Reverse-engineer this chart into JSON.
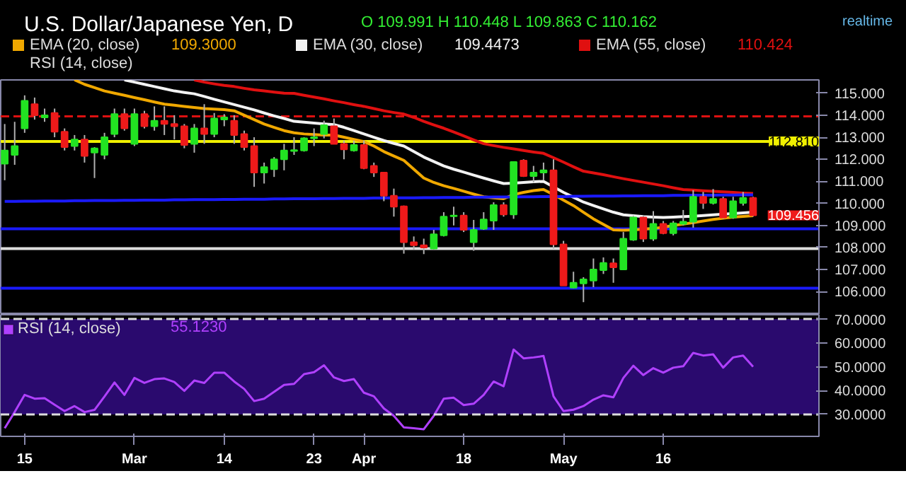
{
  "chart_data": [
    {
      "type": "candlestick",
      "title": "U.S. Dollar/Japanese Yen, D",
      "categories": [
        null,
        null,
        null,
        null,
        null,
        null,
        null,
        null,
        null,
        null,
        null,
        null,
        null,
        null,
        null,
        null,
        null,
        null,
        null,
        null,
        null,
        null,
        null,
        null,
        null,
        null,
        null,
        null,
        null,
        null,
        null,
        null,
        null,
        null,
        null,
        null,
        null,
        null,
        null,
        null,
        null,
        null,
        null,
        null,
        null,
        null,
        null,
        null,
        null,
        null,
        null,
        null,
        null,
        null,
        null,
        null,
        null,
        null,
        null,
        null,
        null,
        null,
        null,
        null,
        null,
        null,
        null,
        null,
        null,
        null,
        null,
        null,
        null,
        null,
        null,
        null
      ],
      "ohlc": [
        [
          111.8,
          113.6,
          111.05,
          112.4
        ],
        [
          112.2,
          113.7,
          111.75,
          112.6
        ],
        [
          113.4,
          114.9,
          113.2,
          114.65
        ],
        [
          114.5,
          114.8,
          113.8,
          114.0
        ],
        [
          113.9,
          114.3,
          113.7,
          114.0
        ],
        [
          114.1,
          114.3,
          113.0,
          113.25
        ],
        [
          113.25,
          113.4,
          112.4,
          112.55
        ],
        [
          112.6,
          113.1,
          112.4,
          112.9
        ],
        [
          112.9,
          113.1,
          111.85,
          112.15
        ],
        [
          112.3,
          112.55,
          111.15,
          112.5
        ],
        [
          112.2,
          113.2,
          112.0,
          113.0
        ],
        [
          113.15,
          114.3,
          113.0,
          114.05
        ],
        [
          114.05,
          114.3,
          113.3,
          113.4
        ],
        [
          112.7,
          114.3,
          112.6,
          114.05
        ],
        [
          114.05,
          114.2,
          113.4,
          113.5
        ],
        [
          113.5,
          114.4,
          113.3,
          113.75
        ],
        [
          113.75,
          114.4,
          113.1,
          113.6
        ],
        [
          113.6,
          114.0,
          112.9,
          113.5
        ],
        [
          113.5,
          113.6,
          112.5,
          112.65
        ],
        [
          112.7,
          113.6,
          112.3,
          113.4
        ],
        [
          113.4,
          114.5,
          112.7,
          113.15
        ],
        [
          113.15,
          114.1,
          113.0,
          113.85
        ],
        [
          113.8,
          114.05,
          113.5,
          113.9
        ],
        [
          113.75,
          114.0,
          112.7,
          113.1
        ],
        [
          113.15,
          113.3,
          112.4,
          112.55
        ],
        [
          112.6,
          113.0,
          110.75,
          111.4
        ],
        [
          111.4,
          111.85,
          110.9,
          111.65
        ],
        [
          111.55,
          112.1,
          111.2,
          112.0
        ],
        [
          112.0,
          112.7,
          111.5,
          112.4
        ],
        [
          112.38,
          113.0,
          112.2,
          112.42
        ],
        [
          112.4,
          113.0,
          112.35,
          112.95
        ],
        [
          112.95,
          113.4,
          112.6,
          113.0
        ],
        [
          113.15,
          113.75,
          112.95,
          113.55
        ],
        [
          113.5,
          113.85,
          112.7,
          112.7
        ],
        [
          112.7,
          112.85,
          112.0,
          112.45
        ],
        [
          112.4,
          112.85,
          112.35,
          112.65
        ],
        [
          112.65,
          112.85,
          111.55,
          111.6
        ],
        [
          111.7,
          111.85,
          111.2,
          111.4
        ],
        [
          111.4,
          111.4,
          110.1,
          110.35
        ],
        [
          110.35,
          110.67,
          109.4,
          109.85
        ],
        [
          109.87,
          109.9,
          107.72,
          108.24
        ],
        [
          108.24,
          108.5,
          107.9,
          108.1
        ],
        [
          108.1,
          108.4,
          107.7,
          108.0
        ],
        [
          107.95,
          108.8,
          107.9,
          108.6
        ],
        [
          108.55,
          109.6,
          108.5,
          109.4
        ],
        [
          109.42,
          109.85,
          109.0,
          109.45
        ],
        [
          109.45,
          109.6,
          108.7,
          108.8
        ],
        [
          108.24,
          109.25,
          107.85,
          108.8
        ],
        [
          108.85,
          109.6,
          108.8,
          109.27
        ],
        [
          109.22,
          110.05,
          108.8,
          109.92
        ],
        [
          109.92,
          110.05,
          109.4,
          109.5
        ],
        [
          109.5,
          111.9,
          109.3,
          111.88
        ],
        [
          111.94,
          112.0,
          111.2,
          111.24
        ],
        [
          111.24,
          111.7,
          110.95,
          111.4
        ],
        [
          111.4,
          111.85,
          111.05,
          111.5
        ],
        [
          111.5,
          112.0,
          107.95,
          108.14
        ],
        [
          108.14,
          108.3,
          106.27,
          106.27
        ],
        [
          106.18,
          106.9,
          106.15,
          106.4
        ],
        [
          106.37,
          106.65,
          105.52,
          106.55
        ],
        [
          106.5,
          107.5,
          106.2,
          107.0
        ],
        [
          106.97,
          107.55,
          106.8,
          107.3
        ],
        [
          107.28,
          107.5,
          106.4,
          107.1
        ],
        [
          107.0,
          108.7,
          107.0,
          108.4
        ],
        [
          108.35,
          109.45,
          108.3,
          109.36
        ],
        [
          109.36,
          109.45,
          108.25,
          108.4
        ],
        [
          108.4,
          109.65,
          108.3,
          109.07
        ],
        [
          109.07,
          109.2,
          108.6,
          108.65
        ],
        [
          108.65,
          109.2,
          108.55,
          109.1
        ],
        [
          109.07,
          109.7,
          109.0,
          109.17
        ],
        [
          109.17,
          110.6,
          108.9,
          110.3
        ],
        [
          110.3,
          110.52,
          109.75,
          110.02
        ],
        [
          110.02,
          110.65,
          109.95,
          110.2
        ],
        [
          110.2,
          110.3,
          109.3,
          109.36
        ],
        [
          109.36,
          110.3,
          109.3,
          110.1
        ],
        [
          110.02,
          110.52,
          109.9,
          110.25
        ],
        [
          110.25,
          110.3,
          109.4,
          109.46
        ]
      ],
      "colors": [
        "#22e322",
        "#22e322",
        "#22e322",
        "#ee1a1a",
        "#22e322",
        "#ee1a1a",
        "#ee1a1a",
        "#22e322",
        "#ee1a1a",
        "#22e322",
        "#22e322",
        "#22e322",
        "#ee1a1a",
        "#22e322",
        "#ee1a1a",
        "#22e322",
        "#ee1a1a",
        "#ee1a1a",
        "#ee1a1a",
        "#22e322",
        "#ee1a1a",
        "#22e322",
        "#22e322",
        "#ee1a1a",
        "#ee1a1a",
        "#ee1a1a",
        "#22e322",
        "#22e322",
        "#22e322",
        "#22e322",
        "#22e322",
        "#22e322",
        "#22e322",
        "#ee1a1a",
        "#ee1a1a",
        "#22e322",
        "#ee1a1a",
        "#ee1a1a",
        "#ee1a1a",
        "#ee1a1a",
        "#ee1a1a",
        "#ee1a1a",
        "#ee1a1a",
        "#22e322",
        "#22e322",
        "#22e322",
        "#ee1a1a",
        "#22e322",
        "#22e322",
        "#22e322",
        "#ee1a1a",
        "#22e322",
        "#ee1a1a",
        "#22e322",
        "#22e322",
        "#ee1a1a",
        "#ee1a1a",
        "#22e322",
        "#22e322",
        "#22e322",
        "#22e322",
        "#ee1a1a",
        "#22e322",
        "#22e322",
        "#ee1a1a",
        "#22e322",
        "#ee1a1a",
        "#22e322",
        "#22e322",
        "#22e322",
        "#ee1a1a",
        "#22e322",
        "#ee1a1a",
        "#22e322",
        "#22e322",
        "#ee1a1a"
      ],
      "series": [
        {
          "type": "line",
          "name": "EMA (20, close)",
          "color": "#f0a800",
          "values": [
            null,
            null,
            null,
            null,
            null,
            null,
            null,
            115.6,
            115.4,
            115.25,
            115.1,
            115.0,
            114.9,
            114.8,
            114.7,
            114.6,
            114.5,
            114.45,
            114.4,
            114.35,
            114.3,
            114.28,
            114.25,
            114.2,
            114.0,
            113.8,
            113.6,
            113.45,
            113.3,
            113.2,
            113.15,
            113.12,
            113.1,
            113.1,
            113.0,
            112.9,
            112.8,
            112.6,
            112.35,
            112.15,
            111.95,
            111.55,
            111.15,
            110.95,
            110.8,
            110.68,
            110.55,
            110.42,
            110.3,
            110.25,
            110.21,
            110.4,
            110.5,
            110.58,
            110.63,
            110.4,
            110.15,
            109.9,
            109.6,
            109.3,
            109.05,
            108.8,
            108.78,
            108.8,
            108.83,
            108.86,
            108.92,
            109.0,
            109.06,
            109.13,
            109.2,
            109.27,
            109.33,
            109.38,
            109.41,
            109.44
          ]
        },
        {
          "type": "line",
          "name": "EMA (30, close)",
          "color": "#f2f2f2",
          "values": [
            null,
            null,
            null,
            null,
            null,
            null,
            null,
            null,
            null,
            null,
            null,
            null,
            115.6,
            115.5,
            115.4,
            115.3,
            115.2,
            115.1,
            115.03,
            114.97,
            114.85,
            114.72,
            114.6,
            114.48,
            114.36,
            114.24,
            114.1,
            113.97,
            113.85,
            113.72,
            113.68,
            113.64,
            113.6,
            113.57,
            113.45,
            113.3,
            113.15,
            113.0,
            112.85,
            112.72,
            112.6,
            112.35,
            112.1,
            111.9,
            111.7,
            111.55,
            111.42,
            111.28,
            111.15,
            111.02,
            110.9,
            110.92,
            110.95,
            110.98,
            111.0,
            110.75,
            110.5,
            110.28,
            110.06,
            109.9,
            109.75,
            109.6,
            109.48,
            109.44,
            109.4,
            109.38,
            109.36,
            109.38,
            109.4,
            109.42,
            109.45,
            109.48,
            109.51,
            109.54,
            109.57,
            109.6
          ]
        },
        {
          "type": "line",
          "name": "EMA (55, close)",
          "color": "#e01010",
          "values": [
            null,
            null,
            null,
            null,
            null,
            null,
            null,
            null,
            null,
            null,
            null,
            null,
            null,
            null,
            null,
            null,
            null,
            null,
            null,
            115.6,
            115.5,
            115.42,
            115.35,
            115.3,
            115.22,
            115.15,
            115.1,
            115.05,
            115.0,
            114.99,
            114.9,
            114.82,
            114.74,
            114.65,
            114.57,
            114.48,
            114.4,
            114.3,
            114.2,
            114.12,
            114.05,
            113.9,
            113.72,
            113.56,
            113.41,
            113.24,
            113.06,
            112.88,
            112.71,
            112.62,
            112.54,
            112.47,
            112.4,
            112.33,
            112.27,
            112.07,
            111.87,
            111.66,
            111.46,
            111.38,
            111.3,
            111.21,
            111.12,
            111.04,
            110.96,
            110.88,
            110.8,
            110.71,
            110.63,
            110.6,
            110.57,
            110.55,
            110.52,
            110.5,
            110.47,
            110.45
          ]
        },
        {
          "type": "line",
          "color": "#1a1aff",
          "values": [
            110.09,
            110.09,
            110.1,
            110.1,
            110.11,
            110.11,
            110.11,
            110.12,
            110.12,
            110.13,
            110.13,
            110.13,
            110.14,
            110.14,
            110.15,
            110.15,
            110.15,
            110.16,
            110.16,
            110.17,
            110.17,
            110.17,
            110.18,
            110.18,
            110.19,
            110.19,
            110.19,
            110.2,
            110.2,
            110.21,
            110.21,
            110.21,
            110.22,
            110.22,
            110.23,
            110.23,
            110.23,
            110.24,
            110.24,
            110.25,
            110.25,
            110.25,
            110.26,
            110.26,
            110.27,
            110.27,
            110.27,
            110.28,
            110.28,
            110.29,
            110.29,
            110.29,
            110.3,
            110.3,
            110.31,
            110.31,
            110.31,
            110.32,
            110.32,
            110.33,
            110.33,
            110.33,
            110.34,
            110.34,
            110.35,
            110.35,
            110.35,
            110.36,
            110.36,
            110.37,
            110.37,
            110.37,
            110.38,
            110.38,
            110.39,
            110.39
          ]
        }
      ],
      "ref_lines": [
        {
          "axis": "y",
          "value": 113.95,
          "color": "#dd1111",
          "line_style": "dashed"
        },
        {
          "axis": "y",
          "value": 112.81,
          "color": "#f0f000",
          "label": "112.810"
        },
        {
          "axis": "y",
          "value": 108.85,
          "color": "#1a1aff"
        },
        {
          "axis": "y",
          "value": 107.95,
          "color": "#dddddd"
        },
        {
          "axis": "y",
          "value": 106.15,
          "color": "#1a1aff"
        }
      ],
      "annotations": [
        "O 109.991 H 110.448 L 109.863 C 110.162",
        "realtime",
        "109.3000",
        "109.4473",
        "110.424",
        "RSI (14, close)",
        "109.456"
      ],
      "legend": "top left",
      "ylim": [
        104.95,
        115.6
      ],
      "yticks": [
        {
          "value": 106,
          "label": "106.000"
        },
        {
          "value": 107,
          "label": "107.000"
        },
        {
          "value": 108,
          "label": "108.000"
        },
        {
          "value": 109,
          "label": "109.000"
        },
        {
          "value": 110,
          "label": "110.000"
        },
        {
          "value": 111,
          "label": "111.000"
        },
        {
          "value": 112,
          "label": "112.000"
        },
        {
          "value": 113,
          "label": "113.000"
        },
        {
          "value": 114,
          "label": "114.000"
        },
        {
          "value": 115,
          "label": "115.000"
        }
      ],
      "tick_labels": "y"
    },
    {
      "type": "line",
      "categories": [
        null,
        null,
        "15",
        null,
        null,
        null,
        null,
        null,
        null,
        null,
        null,
        null,
        null,
        "Mar",
        null,
        null,
        null,
        null,
        null,
        null,
        null,
        null,
        "14",
        null,
        null,
        null,
        null,
        null,
        null,
        null,
        null,
        "23",
        null,
        null,
        null,
        null,
        "Apr",
        null,
        null,
        null,
        null,
        null,
        null,
        null,
        null,
        null,
        "18",
        null,
        null,
        null,
        null,
        null,
        null,
        null,
        null,
        null,
        "May",
        null,
        null,
        null,
        null,
        null,
        null,
        null,
        null,
        null,
        "16",
        null,
        null,
        null,
        null,
        null,
        null,
        null,
        null,
        null
      ],
      "series": [
        {
          "name": "RSI (14, close)",
          "color": "#b040ff",
          "values": [
            24.2,
            31.0,
            38.2,
            36.6,
            36.8,
            34.1,
            31.4,
            33.5,
            31.0,
            31.9,
            37.5,
            43.4,
            38.2,
            45.3,
            43.2,
            44.8,
            45.1,
            43.6,
            39.9,
            44.2,
            43.2,
            47.5,
            47.5,
            43.8,
            40.7,
            35.6,
            36.6,
            39.5,
            42.4,
            42.8,
            46.9,
            47.7,
            50.6,
            45.5,
            44.0,
            44.8,
            39.1,
            37.6,
            32.5,
            29.4,
            24.6,
            24.2,
            23.8,
            29.4,
            36.6,
            37.0,
            33.9,
            34.5,
            38.2,
            43.8,
            41.8,
            57.2,
            53.5,
            53.9,
            54.5,
            37.6,
            31.4,
            32.0,
            33.5,
            36.2,
            38.0,
            37.2,
            45.3,
            50.4,
            46.5,
            49.4,
            47.5,
            49.6,
            50.2,
            55.8,
            54.7,
            55.2,
            49.6,
            53.9,
            54.7,
            50.0
          ]
        }
      ],
      "annotations": [
        "55.1230"
      ],
      "bands": [
        {
          "axis": "y",
          "from": 30,
          "to": 70,
          "color": "#2a0a6e"
        }
      ],
      "ref_lines": [
        {
          "axis": "y",
          "value": 70,
          "color": "#dddddd",
          "line_style": "dashed"
        },
        {
          "axis": "y",
          "value": 30,
          "color": "#dddddd",
          "line_style": "dashed"
        }
      ],
      "legend": "top left",
      "ylim": [
        20.8,
        71.8
      ],
      "yticks": [
        {
          "value": 30,
          "label": "30.0000"
        },
        {
          "value": 40,
          "label": "40.0000"
        },
        {
          "value": 50,
          "label": "50.0000"
        },
        {
          "value": 60,
          "label": "60.0000"
        },
        {
          "value": 70,
          "label": "70.0000"
        }
      ]
    }
  ]
}
